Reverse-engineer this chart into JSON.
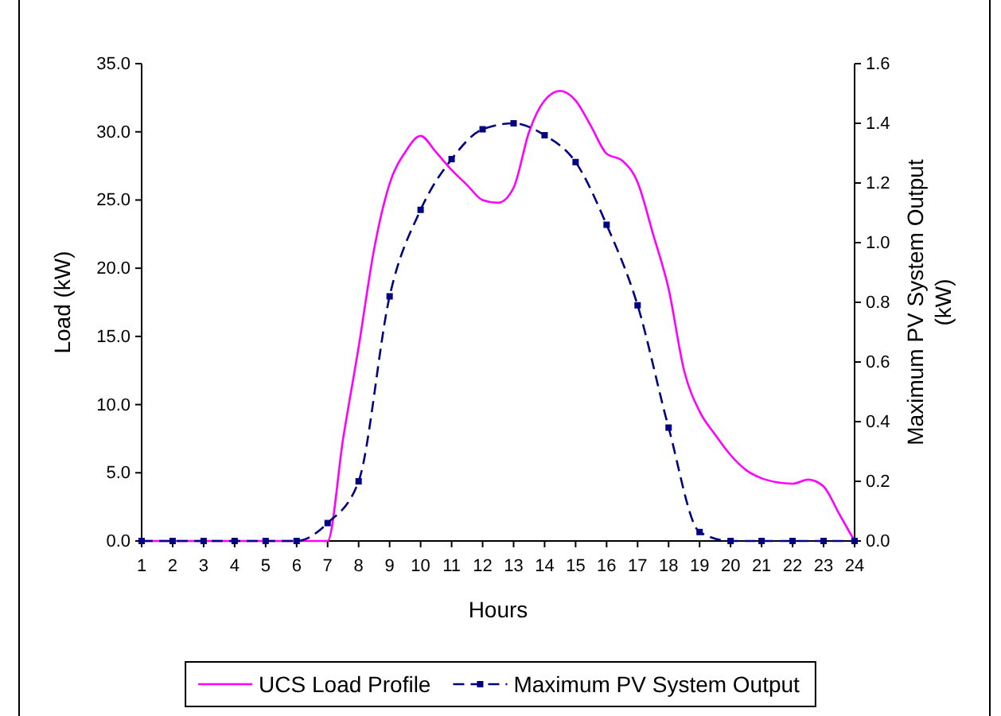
{
  "chart_data": {
    "type": "line",
    "xlabel": "Hours",
    "ylabel": "Load (kW)",
    "y2label": "Maximum PV System Output (kW)",
    "xlim": [
      1,
      24
    ],
    "xticks": [
      1,
      2,
      3,
      4,
      5,
      6,
      7,
      8,
      9,
      10,
      11,
      12,
      13,
      14,
      15,
      16,
      17,
      18,
      19,
      20,
      21,
      22,
      23,
      24
    ],
    "ylim": [
      0,
      35
    ],
    "yticks": [
      {
        "value": 0,
        "label": "0.0"
      },
      {
        "value": 5,
        "label": "5.0"
      },
      {
        "value": 10,
        "label": "10.0"
      },
      {
        "value": 15,
        "label": "15.0"
      },
      {
        "value": 20,
        "label": "20.0"
      },
      {
        "value": 25,
        "label": "25.0"
      },
      {
        "value": 30,
        "label": "30.0"
      },
      {
        "value": 35,
        "label": "35.0"
      }
    ],
    "y2lim": [
      0,
      1.6
    ],
    "y2ticks": [
      {
        "value": 0,
        "label": "0.0"
      },
      {
        "value": 0.2,
        "label": "0.2"
      },
      {
        "value": 0.4,
        "label": "0.4"
      },
      {
        "value": 0.6,
        "label": "0.6"
      },
      {
        "value": 0.8,
        "label": "0.8"
      },
      {
        "value": 1.0,
        "label": "1.0"
      },
      {
        "value": 1.2,
        "label": "1.2"
      },
      {
        "value": 1.4,
        "label": "1.4"
      },
      {
        "value": 1.6,
        "label": "1.6"
      }
    ],
    "grid": false,
    "legend": "bottom",
    "series": [
      {
        "name": "UCS Load Profile",
        "color": "#ff00ff",
        "line_style": "solid",
        "marker": "none",
        "x": [
          1,
          2,
          3,
          4,
          5,
          6,
          6.5,
          7,
          7.5,
          8,
          8.5,
          9,
          9.5,
          10,
          10.5,
          11,
          11.5,
          12,
          12.5,
          13,
          13.5,
          14,
          14.5,
          15,
          15.5,
          16,
          16.5,
          17,
          17.5,
          18,
          18.5,
          19,
          19.5,
          20,
          20.5,
          21,
          21.5,
          22,
          22.5,
          23,
          23.5,
          24
        ],
        "values": [
          0,
          0,
          0,
          0,
          0,
          0,
          0,
          0,
          7.5,
          14.2,
          21.4,
          26.2,
          28.5,
          29.7,
          28.5,
          27.2,
          26.1,
          25.0,
          24.8,
          25.9,
          30.0,
          32.3,
          33.0,
          32.3,
          30.4,
          28.4,
          27.9,
          26.3,
          22.5,
          18.5,
          12.5,
          9.5,
          7.8,
          6.3,
          5.2,
          4.6,
          4.3,
          4.2,
          4.5,
          4.0,
          2.0,
          0
        ]
      },
      {
        "name": "Maximum PV System Output",
        "color": "#000080",
        "axis": "y2",
        "line_style": "dashed",
        "marker": "square",
        "x": [
          1,
          2,
          3,
          4,
          5,
          6,
          7,
          8,
          9,
          10,
          11,
          12,
          13,
          14,
          15,
          16,
          17,
          18,
          19,
          20,
          21,
          22,
          23,
          24
        ],
        "values": [
          0,
          0,
          0,
          0,
          0,
          0,
          0.06,
          0.2,
          0.82,
          1.11,
          1.28,
          1.38,
          1.4,
          1.36,
          1.27,
          1.06,
          0.79,
          0.38,
          0.03,
          0,
          0,
          0,
          0,
          0
        ]
      }
    ]
  }
}
